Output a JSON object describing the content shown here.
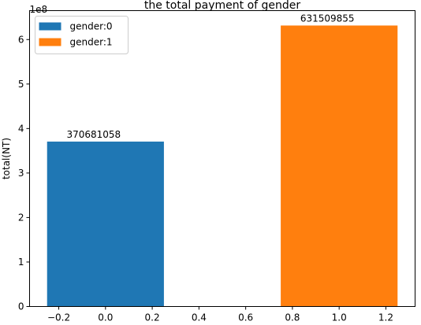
{
  "chart_data": {
    "type": "bar",
    "title": "the total payment of gender",
    "xlabel": "",
    "ylabel": "total(NT)",
    "y_offset_label": "1e8",
    "y_scale": 100000000,
    "xlim": [
      -0.325,
      1.325
    ],
    "ylim": [
      0,
      665000000
    ],
    "x_ticks": [
      -0.2,
      0.0,
      0.2,
      0.4,
      0.6,
      0.8,
      1.0,
      1.2
    ],
    "x_tick_labels": [
      "−0.2",
      "0.0",
      "0.2",
      "0.4",
      "0.6",
      "0.8",
      "1.0",
      "1.2"
    ],
    "y_ticks": [
      0,
      100000000,
      200000000,
      300000000,
      400000000,
      500000000,
      600000000
    ],
    "y_tick_labels": [
      "0",
      "1",
      "2",
      "3",
      "4",
      "5",
      "6"
    ],
    "bar_width": 0.5,
    "series": [
      {
        "name": "gender:0",
        "x": 0,
        "value": 370681058,
        "label": "370681058",
        "color": "#1f77b4"
      },
      {
        "name": "gender:1",
        "x": 1,
        "value": 631509855,
        "label": "631509855",
        "color": "#ff7f0e"
      }
    ],
    "legend": {
      "placement": "upper-left"
    },
    "grid": false
  }
}
